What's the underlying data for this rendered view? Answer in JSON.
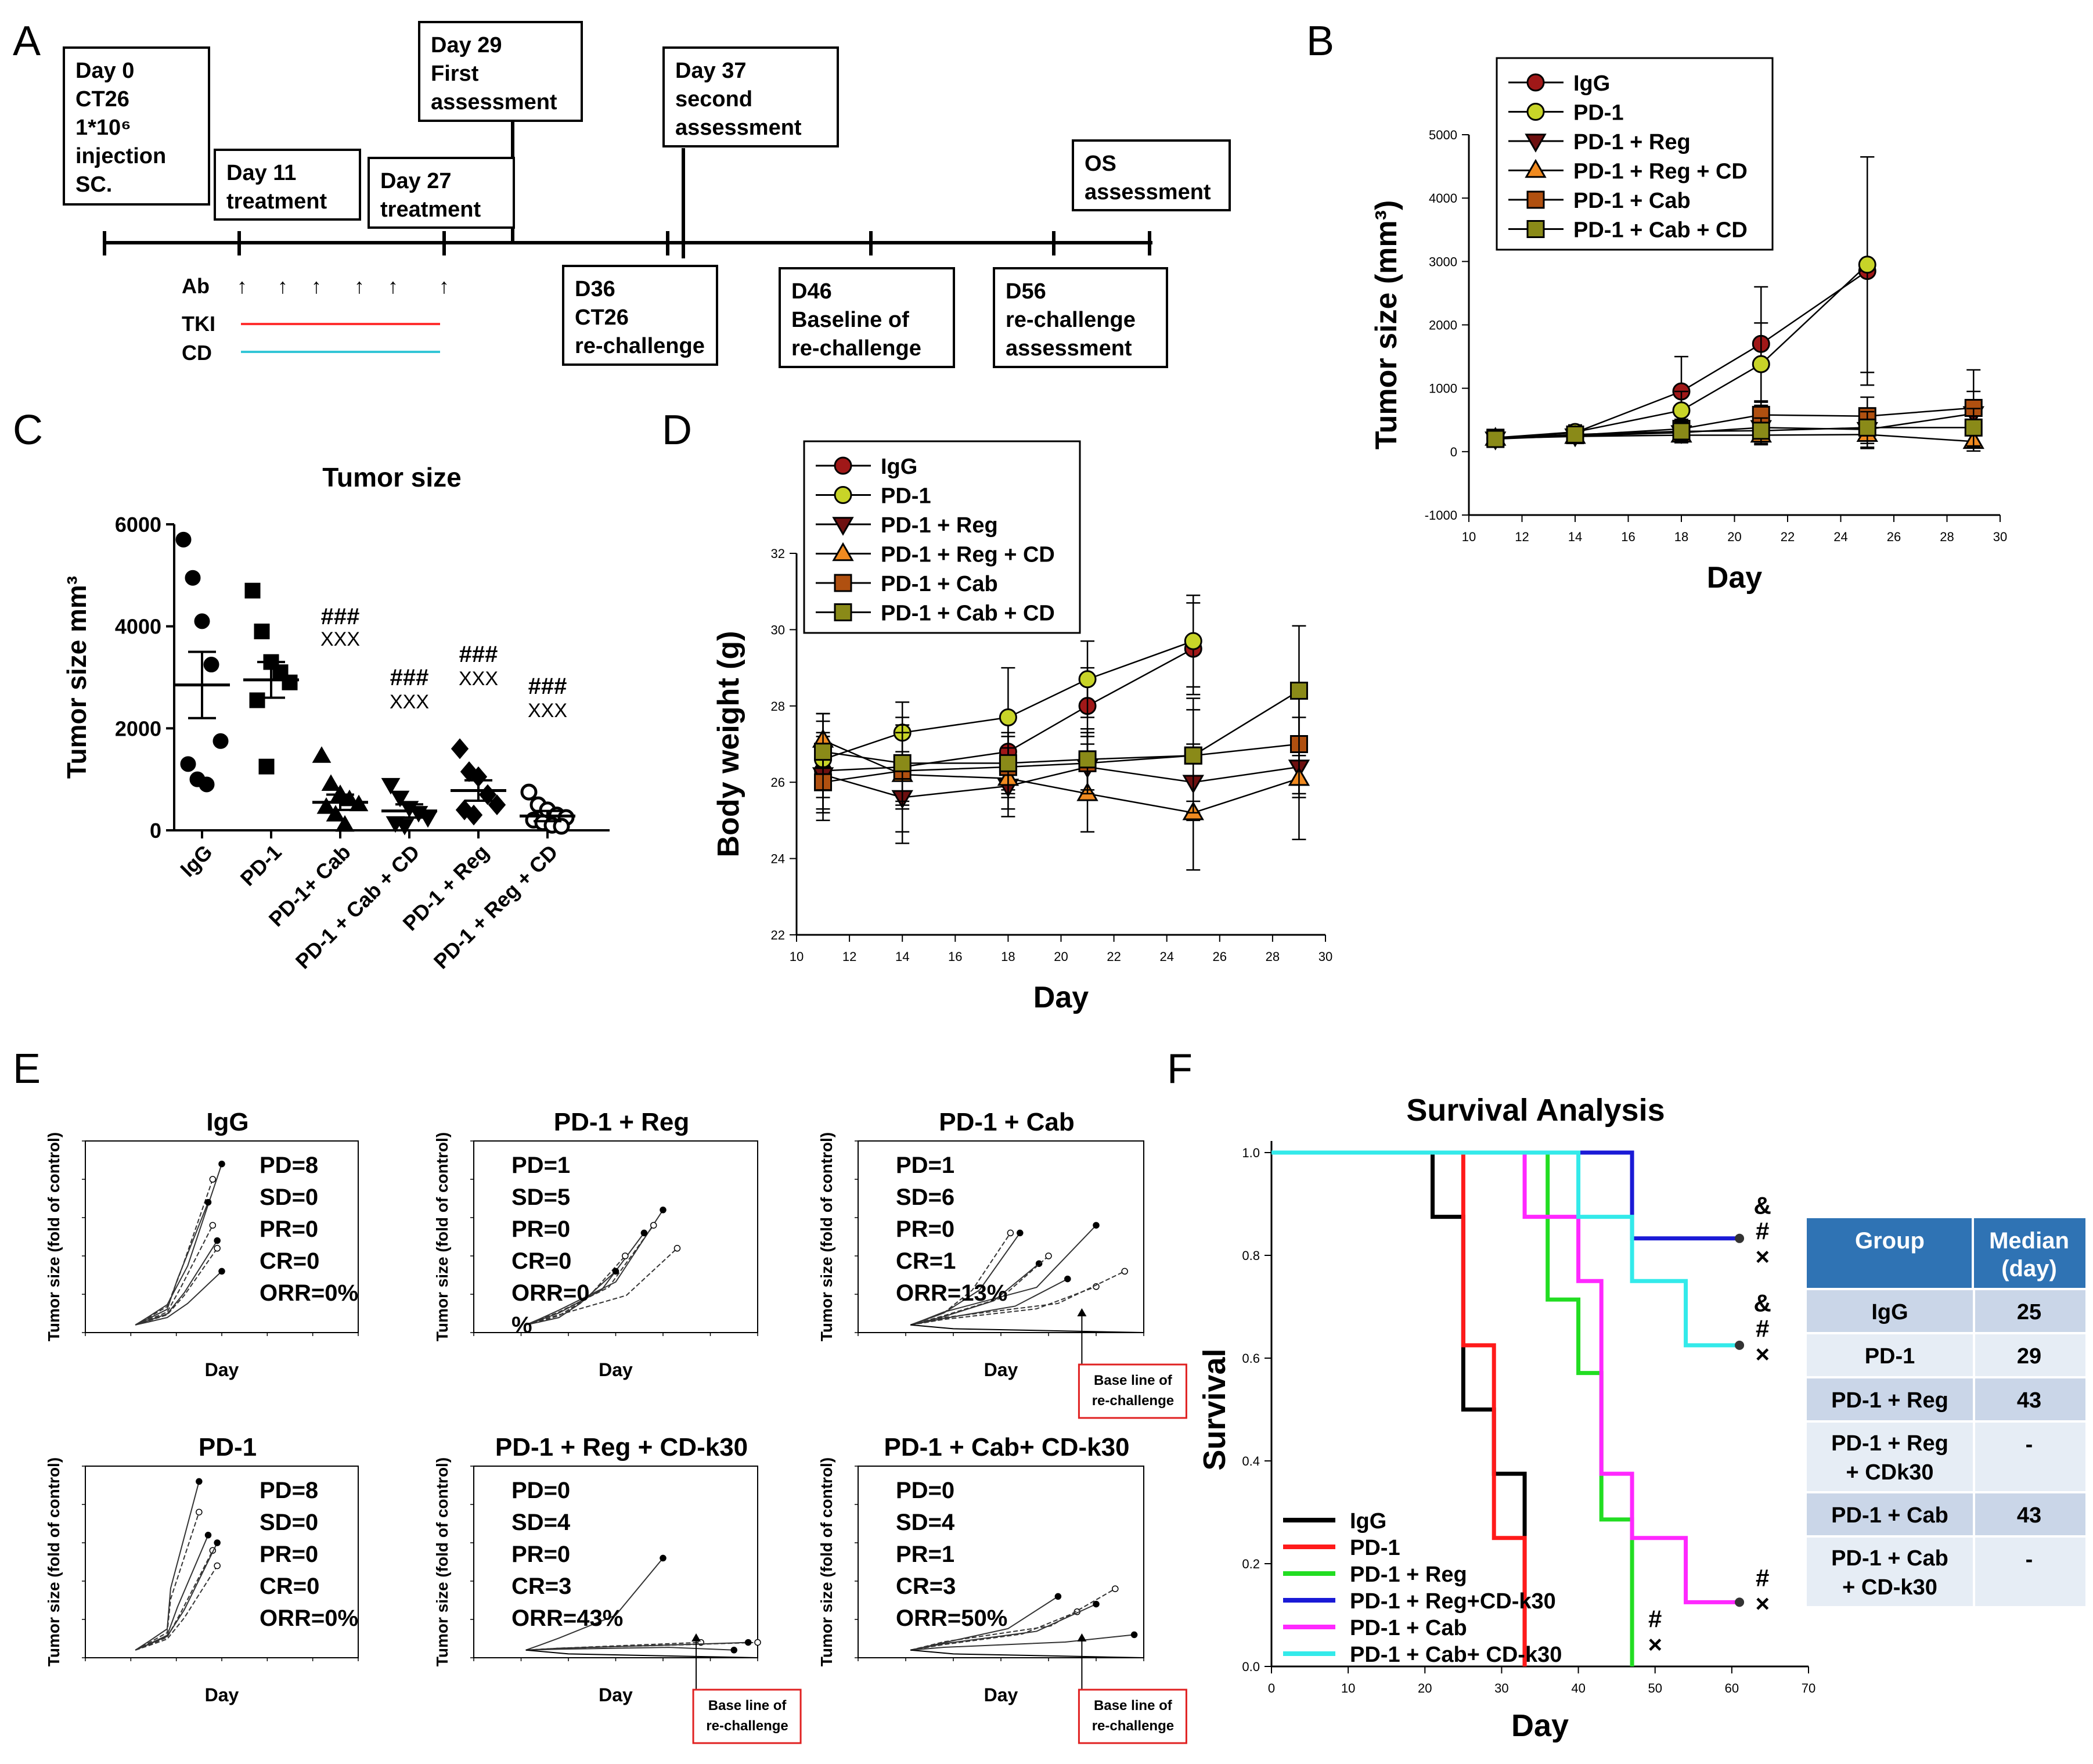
{
  "panel_letters": [
    "A",
    "B",
    "C",
    "D",
    "E",
    "F"
  ],
  "timeline": {
    "boxes": [
      [
        "Day 0",
        "CT26",
        "1*10⁶",
        "injection",
        "SC."
      ],
      [
        "Day 11",
        "treatment"
      ],
      [
        "Day 27",
        "treatment"
      ],
      [
        "Day 29",
        "First",
        "assessment"
      ],
      [
        "Day 37",
        "second",
        "assessment"
      ],
      [
        "OS",
        "assessment"
      ],
      [
        "D36",
        "CT26",
        " re-challenge"
      ],
      [
        "D46",
        "Baseline of",
        " re-challenge"
      ],
      [
        "D56",
        "re-challenge",
        "assessment"
      ]
    ],
    "ab_label": "Ab",
    "tki_label": "TKI",
    "cd_label": "CD",
    "ab_marker": "↑",
    "tki_color": "#ff3030",
    "cd_color": "#33c6d6"
  },
  "chart_data": [
    {
      "id": "B",
      "type": "line",
      "xlabel": "Day",
      "ylabel": "Tumor size (mm³)",
      "xlim": [
        10,
        30
      ],
      "ylim": [
        -1000,
        5000
      ],
      "xticks": [
        10,
        12,
        14,
        16,
        18,
        20,
        22,
        24,
        26,
        28,
        30
      ],
      "yticks": [
        -1000,
        0,
        1000,
        2000,
        3000,
        4000,
        5000
      ],
      "legend": [
        "IgG",
        "PD-1",
        "PD-1 + Reg",
        "PD-1 + Reg + CD",
        "PD-1 + Cab",
        "PD-1 + Cab + CD"
      ],
      "series": [
        {
          "name": "IgG",
          "x": [
            11,
            14,
            18,
            21,
            25
          ],
          "values": [
            200,
            300,
            950,
            1700,
            2850
          ],
          "err": [
            60,
            120,
            550,
            900,
            1800
          ],
          "color": "#a01818",
          "marker": "circle"
        },
        {
          "name": "PD-1",
          "x": [
            11,
            14,
            18,
            21,
            25
          ],
          "values": [
            220,
            310,
            650,
            1380,
            2950
          ],
          "err": [
            60,
            110,
            300,
            650,
            1700
          ],
          "color": "#c8d428",
          "marker": "circle"
        },
        {
          "name": "PD-1 + Reg",
          "x": [
            11,
            14,
            18,
            21,
            25,
            29
          ],
          "values": [
            200,
            250,
            300,
            380,
            350,
            600
          ],
          "err": [
            50,
            100,
            150,
            200,
            300,
            350
          ],
          "color": "#6e1010",
          "marker": "tri-down"
        },
        {
          "name": "PD-1 + Reg + CD",
          "x": [
            11,
            14,
            18,
            21,
            25,
            29
          ],
          "values": [
            210,
            240,
            260,
            260,
            270,
            160
          ],
          "err": [
            50,
            90,
            120,
            150,
            200,
            150
          ],
          "color": "#f08a20",
          "marker": "tri-up"
        },
        {
          "name": "PD-1 + Cab",
          "x": [
            11,
            14,
            18,
            21,
            25,
            29
          ],
          "values": [
            220,
            260,
            360,
            580,
            560,
            690
          ],
          "err": [
            50,
            100,
            150,
            200,
            300,
            600
          ],
          "color": "#b05010",
          "marker": "square"
        },
        {
          "name": "PD-1 + Cab + CD",
          "x": [
            11,
            14,
            18,
            21,
            25,
            29
          ],
          "values": [
            200,
            270,
            320,
            330,
            380,
            380
          ],
          "err": [
            50,
            100,
            150,
            200,
            250,
            300
          ],
          "color": "#8a8a18",
          "marker": "square"
        }
      ]
    },
    {
      "id": "C",
      "type": "scatter",
      "title": "Tumor size",
      "ylabel": "Tumor size mm³",
      "ylim": [
        0,
        6000
      ],
      "yticks": [
        0,
        2000,
        4000,
        6000
      ],
      "categories": [
        "IgG",
        "PD-1",
        "PD-1+ Cab",
        "PD-1 + Cab + CD",
        "PD-1 + Reg",
        "PD-1 + Reg + CD"
      ],
      "means": [
        2850,
        2950,
        550,
        380,
        780,
        280
      ],
      "sem": [
        650,
        350,
        150,
        130,
        200,
        100
      ],
      "points": [
        [
          5700,
          4950,
          4100,
          3250,
          1750,
          1300,
          1000,
          900
        ],
        [
          4700,
          3900,
          3300,
          3100,
          2900,
          2550,
          1250
        ],
        [
          1450,
          900,
          700,
          600,
          500,
          450,
          300,
          100
        ],
        [
          900,
          650,
          450,
          350,
          250,
          150,
          100
        ],
        [
          1600,
          1150,
          1050,
          700,
          500,
          400,
          300
        ],
        [
          750,
          500,
          400,
          300,
          250,
          200,
          150,
          100,
          80
        ]
      ],
      "markers": [
        "circle",
        "square",
        "tri-up",
        "tri-down",
        "diamond",
        "open-circle"
      ],
      "annotations": [
        {
          "cat": 2,
          "hash": "###",
          "xxx": "XXX"
        },
        {
          "cat": 3,
          "hash": "###",
          "xxx": "XXX"
        },
        {
          "cat": 4,
          "hash": "###",
          "xxx": "XXX"
        },
        {
          "cat": 5,
          "hash": "###",
          "xxx": "XXX"
        }
      ]
    },
    {
      "id": "D",
      "type": "line",
      "xlabel": "Day",
      "ylabel": "Body weight (g)",
      "xlim": [
        10,
        30
      ],
      "ylim": [
        22,
        32
      ],
      "xticks": [
        10,
        12,
        14,
        16,
        18,
        20,
        22,
        24,
        26,
        28,
        30
      ],
      "yticks": [
        22,
        24,
        26,
        28,
        30,
        32
      ],
      "legend": [
        "IgG",
        "PD-1",
        "PD-1 + Reg",
        "PD-1 + Reg + CD",
        "PD-1 + Cab",
        "PD-1 + Cab + CD"
      ],
      "series": [
        {
          "name": "IgG",
          "x": [
            11,
            14,
            18,
            21,
            25
          ],
          "values": [
            26.3,
            26.4,
            26.8,
            28.0,
            29.5
          ],
          "err": [
            1.0,
            1.0,
            1.0,
            1.0,
            1.2
          ],
          "color": "#a01818",
          "marker": "circle"
        },
        {
          "name": "PD-1",
          "x": [
            11,
            14,
            18,
            21,
            25
          ],
          "values": [
            26.6,
            27.3,
            27.7,
            28.7,
            29.7
          ],
          "err": [
            1.0,
            0.8,
            1.3,
            1.0,
            1.2
          ],
          "color": "#c8d428",
          "marker": "circle"
        },
        {
          "name": "PD-1 + Reg",
          "x": [
            11,
            14,
            18,
            21,
            25,
            29
          ],
          "values": [
            26.2,
            25.6,
            25.9,
            26.4,
            26.0,
            26.4
          ],
          "err": [
            1.0,
            1.2,
            0.8,
            0.8,
            1.0,
            0.8
          ],
          "color": "#6e1010",
          "marker": "tri-down"
        },
        {
          "name": "PD-1 + Reg + CD",
          "x": [
            11,
            14,
            18,
            21,
            25,
            29
          ],
          "values": [
            27.1,
            26.2,
            26.1,
            25.7,
            25.2,
            26.1
          ],
          "err": [
            0.7,
            1.5,
            0.8,
            1.0,
            1.5,
            1.6
          ],
          "color": "#f08a20",
          "marker": "tri-up"
        },
        {
          "name": "PD-1 + Cab",
          "x": [
            11,
            14,
            18,
            21,
            25,
            29
          ],
          "values": [
            26.0,
            26.3,
            26.4,
            26.5,
            26.7,
            27.0
          ],
          "err": [
            1.0,
            1.0,
            0.8,
            0.8,
            1.5,
            1.3
          ],
          "color": "#b05010",
          "marker": "square"
        },
        {
          "name": "PD-1 + Cab + CD",
          "x": [
            11,
            14,
            18,
            21,
            25,
            29
          ],
          "values": [
            26.8,
            26.5,
            26.5,
            26.6,
            26.7,
            28.4
          ],
          "err": [
            1.0,
            1.0,
            0.8,
            0.8,
            1.2,
            1.7
          ],
          "color": "#8a8a18",
          "marker": "square"
        }
      ]
    },
    {
      "id": "F",
      "type": "line",
      "title": "Survival Analysis",
      "xlabel": "Day",
      "ylabel": "Survival",
      "xlim": [
        0,
        70
      ],
      "ylim": [
        0,
        1.0
      ],
      "xticks": [
        0,
        10,
        20,
        30,
        40,
        50,
        60,
        70
      ],
      "yticks": [
        0.0,
        0.2,
        0.4,
        0.6,
        0.8,
        1.0
      ],
      "legend": [
        "IgG",
        "PD-1",
        "PD-1 + Reg",
        "PD-1 + Reg+CD-k30",
        "PD-1 + Cab",
        "PD-1 + Cab+ CD-k30"
      ],
      "series": [
        {
          "name": "IgG",
          "color": "#000000",
          "steps": [
            [
              0,
              1.0
            ],
            [
              21,
              0.875
            ],
            [
              25,
              0.5
            ],
            [
              29,
              0.375
            ],
            [
              33,
              0
            ]
          ]
        },
        {
          "name": "PD-1",
          "color": "#ff1a1a",
          "steps": [
            [
              0,
              1.0
            ],
            [
              25,
              0.625
            ],
            [
              29,
              0.25
            ],
            [
              33,
              0
            ]
          ]
        },
        {
          "name": "PD-1 + Reg",
          "color": "#22dd22",
          "steps": [
            [
              0,
              1.0
            ],
            [
              36,
              0.714
            ],
            [
              40,
              0.571
            ],
            [
              43,
              0.286
            ],
            [
              47,
              0
            ]
          ]
        },
        {
          "name": "PD-1 + Reg+CD-k30",
          "color": "#1a1ad6",
          "steps": [
            [
              0,
              1.0
            ],
            [
              47,
              0.833
            ],
            [
              61,
              0.833
            ]
          ]
        },
        {
          "name": "PD-1 + Cab",
          "color": "#ff28ff",
          "steps": [
            [
              0,
              1.0
            ],
            [
              33,
              0.875
            ],
            [
              40,
              0.75
            ],
            [
              43,
              0.375
            ],
            [
              47,
              0.25
            ],
            [
              54,
              0.125
            ],
            [
              61,
              0.125
            ]
          ]
        },
        {
          "name": "PD-1 + Cab+ CD-k30",
          "color": "#33eaea",
          "steps": [
            [
              0,
              1.0
            ],
            [
              40,
              0.875
            ],
            [
              47,
              0.75
            ],
            [
              54,
              0.625
            ],
            [
              61,
              0.625
            ]
          ]
        }
      ],
      "annotations": [
        {
          "x": 64,
          "y": 0.82,
          "lines": [
            "&",
            "#",
            "×"
          ]
        },
        {
          "x": 64,
          "y": 0.63,
          "lines": [
            "&",
            "#",
            "×"
          ]
        },
        {
          "x": 64,
          "y": 0.12,
          "lines": [
            "#",
            "×"
          ]
        },
        {
          "x": 50,
          "y": 0.04,
          "lines": [
            "#",
            "×"
          ]
        }
      ]
    }
  ],
  "panel_e": {
    "ylabel": "Tumor size (fold of control)",
    "xlabel": "Day",
    "baseline_note": [
      "Base line of",
      "re-challenge"
    ],
    "subplots": [
      {
        "title": "IgG",
        "stats": [
          "PD=8",
          "SD=0",
          "PR=0",
          "CR=0",
          "ORR=0%"
        ],
        "baseline": false
      },
      {
        "title": "PD-1 + Reg",
        "stats": [
          "PD=1",
          "SD=5",
          "PR=0",
          "CR=0",
          "ORR=0",
          "%"
        ],
        "baseline": false
      },
      {
        "title": "PD-1 + Cab",
        "stats": [
          "PD=1",
          "SD=6",
          "PR=0",
          "CR=1",
          "ORR=13%"
        ],
        "baseline": true
      },
      {
        "title": "PD-1",
        "stats": [
          "PD=8",
          "SD=0",
          "PR=0",
          "CR=0",
          "ORR=0%"
        ],
        "baseline": false
      },
      {
        "title": "PD-1 + Reg + CD-k30",
        "stats": [
          "PD=0",
          "SD=4",
          "PR=0",
          "CR=3",
          "ORR=43%"
        ],
        "baseline": true
      },
      {
        "title": "PD-1 + Cab+ CD-k30",
        "stats": [
          "PD=0",
          "SD=4",
          "PR=1",
          "CR=3",
          "ORR=50%"
        ],
        "baseline": true
      }
    ]
  },
  "median_table": {
    "headers": [
      "Group",
      "Median (day)"
    ],
    "header_color": "#2f73b4",
    "rows": [
      [
        "IgG",
        "25"
      ],
      [
        "PD-1",
        "29"
      ],
      [
        "PD-1 + Reg",
        "43"
      ],
      [
        "PD-1 + Reg + CDk30",
        "-"
      ],
      [
        "PD-1 + Cab",
        "43"
      ],
      [
        "PD-1 + Cab + CD-k30",
        "-"
      ]
    ]
  }
}
